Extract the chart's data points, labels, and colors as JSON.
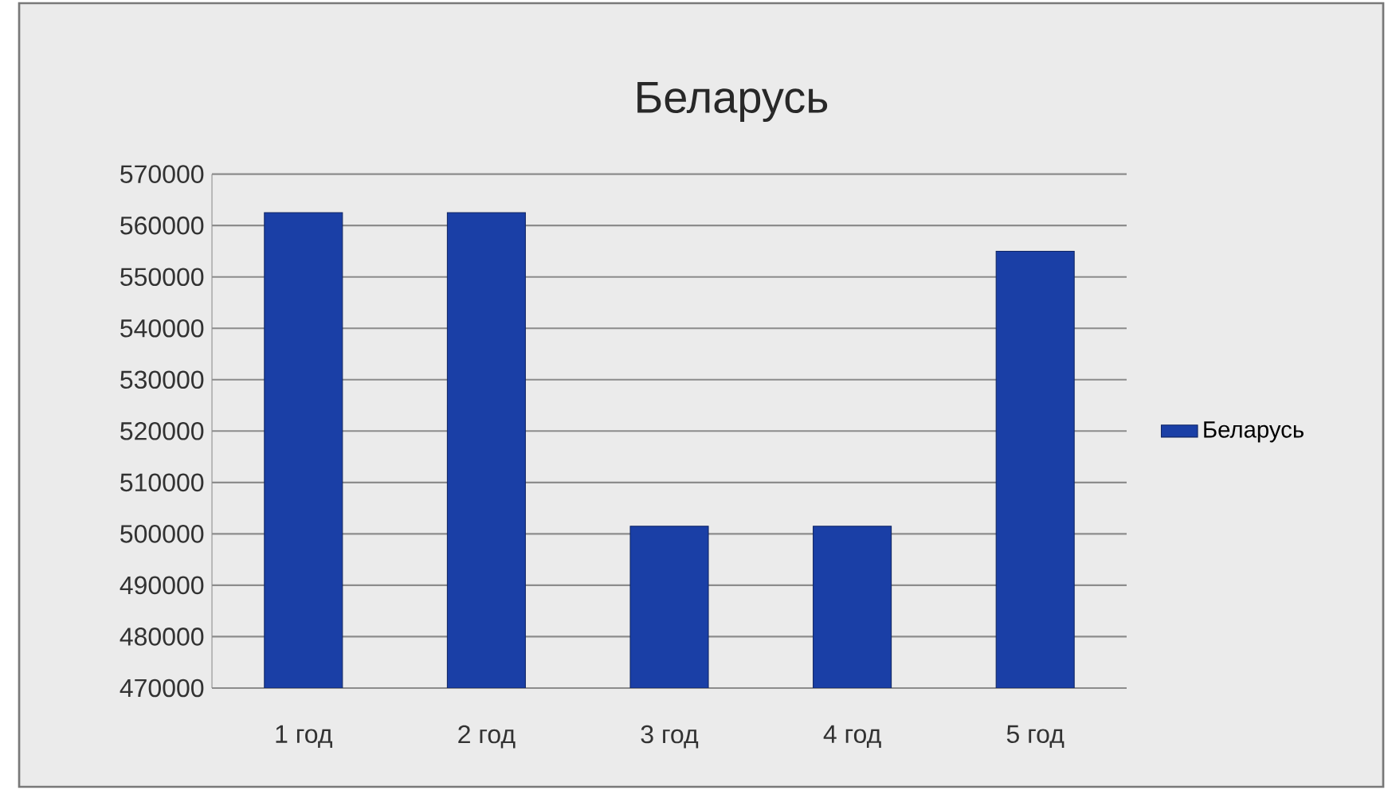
{
  "chart_data": {
    "type": "bar",
    "title": "Беларусь",
    "categories": [
      "1 год",
      "2 год",
      "3 год",
      "4 год",
      "5 год"
    ],
    "series": [
      {
        "name": "Беларусь",
        "color": "#1a3fa6",
        "values": [
          562500,
          562500,
          501500,
          501500,
          555000
        ]
      }
    ],
    "ylim": [
      470000,
      570000
    ],
    "yticks": [
      470000,
      480000,
      490000,
      500000,
      510000,
      520000,
      530000,
      540000,
      550000,
      560000,
      570000
    ],
    "grid": "y",
    "legend": "right"
  }
}
